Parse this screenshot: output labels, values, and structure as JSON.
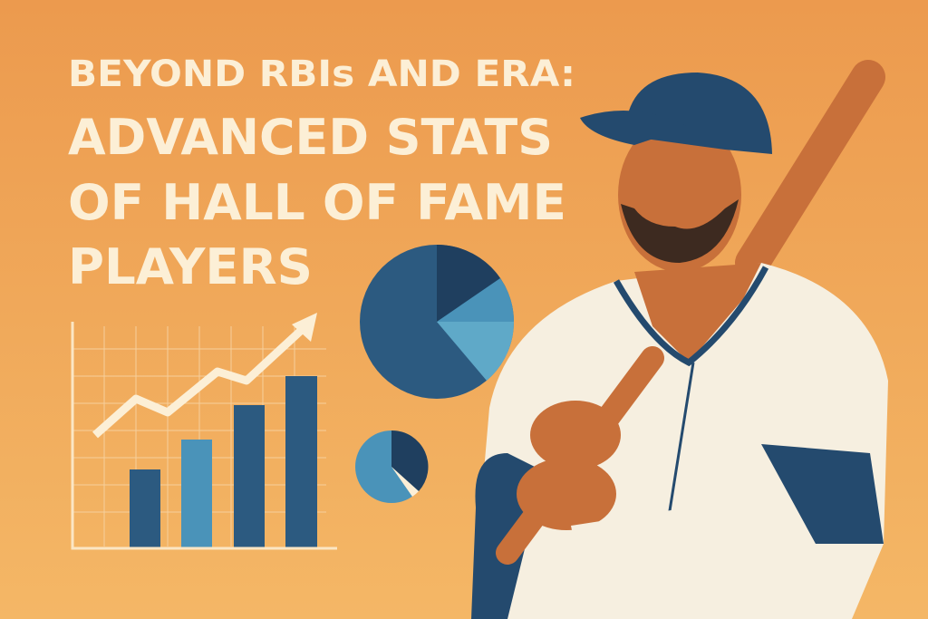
{
  "title": {
    "lines": [
      "BEYOND RBIs AND ERA:",
      "ADVANCED STATS",
      "OF HALL OF FAME",
      "PLAYERS"
    ]
  }
}
